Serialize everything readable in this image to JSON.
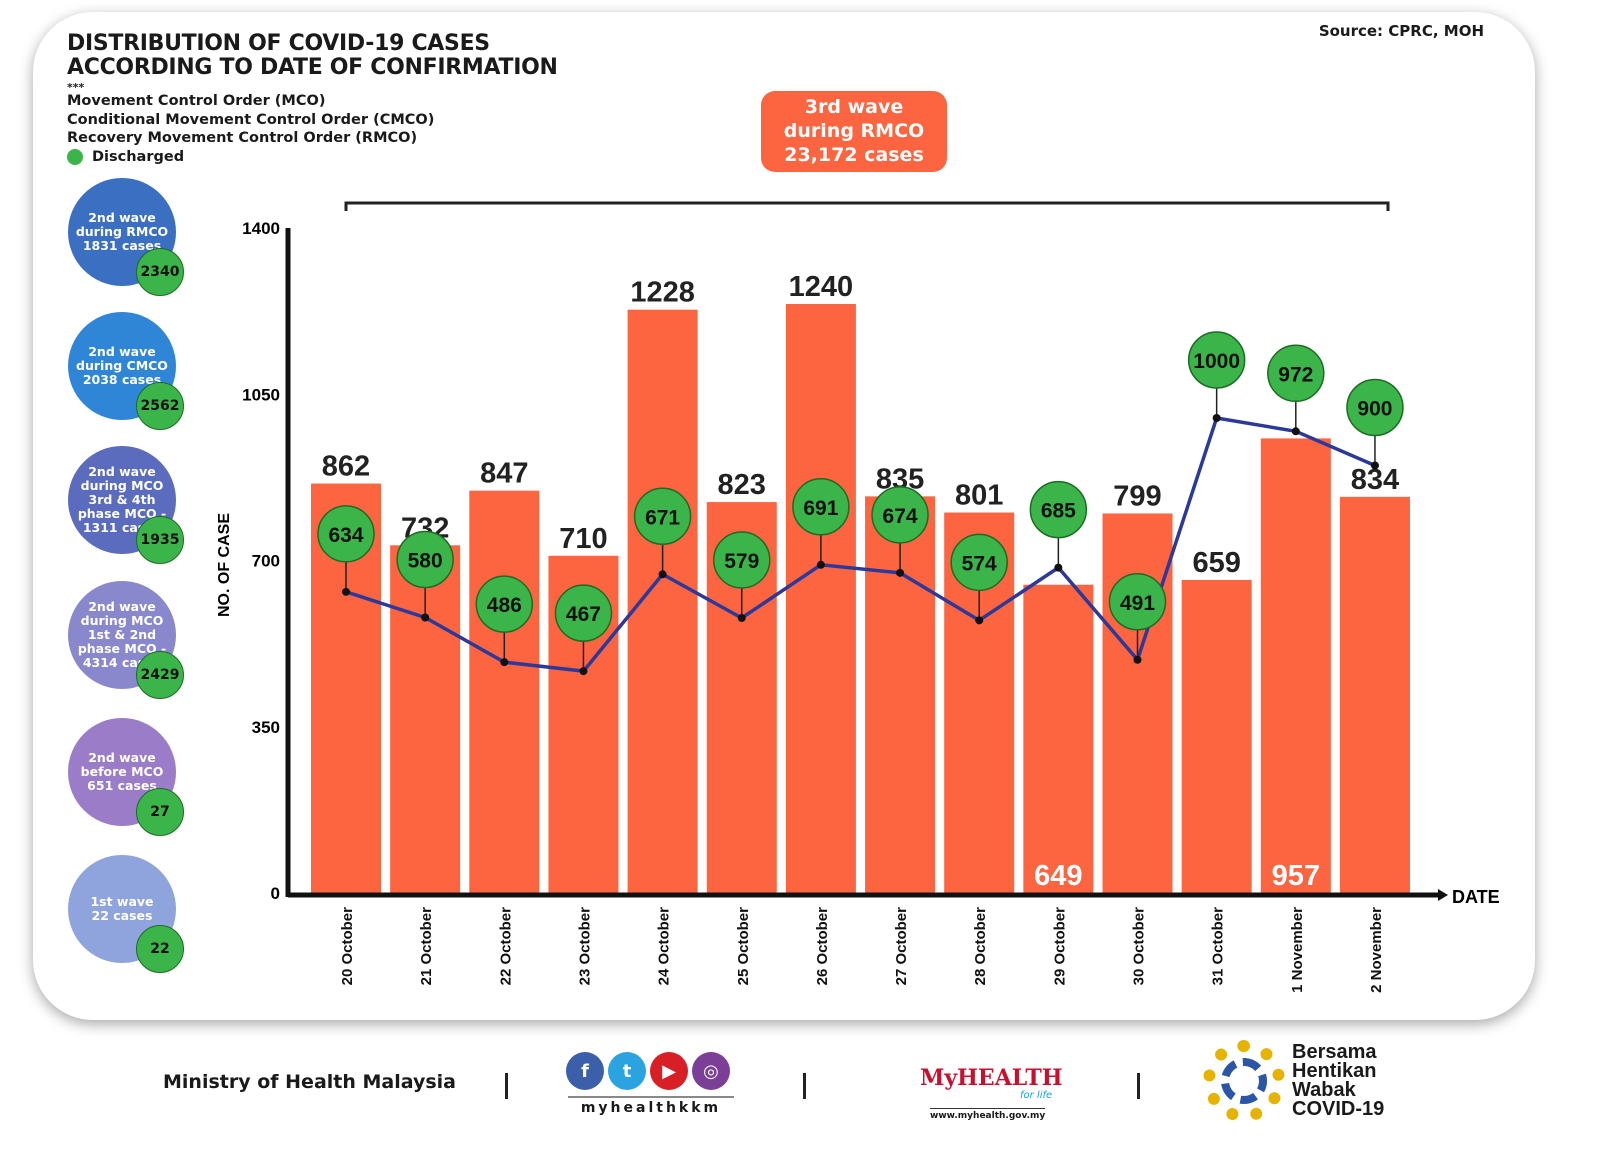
{
  "header": {
    "title_line1": "DISTRIBUTION OF COVID-19 CASES",
    "title_line2": "ACCORDING TO DATE OF CONFIRMATION",
    "stars": "***",
    "notes": [
      "Movement Control Order (MCO)",
      "Conditional Movement Control Order (CMCO)",
      "Recovery Movement Control Order (RMCO)"
    ],
    "legend_discharged": "Discharged",
    "source": "Source: CPRC, MOH"
  },
  "third_wave": {
    "line1": "3rd wave",
    "line2": "during RMCO",
    "line3": "23,172 cases"
  },
  "waves": [
    {
      "label": [
        "2nd wave",
        "during RMCO",
        "1831 cases"
      ],
      "discharged": "2340",
      "color": "#3a6fc2"
    },
    {
      "label": [
        "2nd wave",
        "during CMCO",
        "2038 cases"
      ],
      "discharged": "2562",
      "color": "#2f86d6"
    },
    {
      "label": [
        "2nd wave",
        "during MCO",
        "3rd & 4th",
        "phase MCO -",
        "1311 cases"
      ],
      "discharged": "1935",
      "color": "#5b6cbf"
    },
    {
      "label": [
        "2nd wave",
        "during MCO",
        "1st & 2nd",
        "phase MCO -",
        "4314 cases"
      ],
      "discharged": "2429",
      "color": "#8a88cc"
    },
    {
      "label": [
        "2nd wave",
        "before MCO",
        "651 cases"
      ],
      "discharged": "27",
      "color": "#9a7cc9"
    },
    {
      "label": [
        "1st wave",
        "22 cases"
      ],
      "discharged": "22",
      "color": "#8fa3dc"
    }
  ],
  "chart_data": {
    "type": "bar",
    "xlabel": "DATE",
    "ylabel": "NO. OF CASE",
    "ylim": [
      0,
      1400
    ],
    "yticks": [
      0,
      350,
      700,
      1050,
      1400
    ],
    "categories": [
      "20 October",
      "21 October",
      "22 October",
      "23 October",
      "24 October",
      "25 October",
      "26 October",
      "27 October",
      "28 October",
      "29 October",
      "30 October",
      "31 October",
      "1 November",
      "2 November"
    ],
    "series": [
      {
        "type": "bar",
        "values": [
          862,
          732,
          847,
          710,
          1228,
          823,
          1240,
          835,
          801,
          649,
          799,
          659,
          957,
          834
        ],
        "color": "#fd6440"
      },
      {
        "type": "line",
        "name": "Discharged",
        "values": [
          634,
          580,
          486,
          467,
          671,
          579,
          691,
          674,
          574,
          685,
          491,
          1000,
          972,
          900
        ],
        "color": "#2b3a9a",
        "marker_color": "#3bb54a"
      }
    ]
  },
  "footer": {
    "ministry": "Ministry of Health Malaysia",
    "social_handle": "myhealthkkm",
    "social_icons": [
      "facebook-icon",
      "twitter-icon",
      "youtube-icon",
      "instagram-icon"
    ],
    "myhealth_logo": "MyHEALTH",
    "myhealth_tagline": "for life",
    "myhealth_url": "www.myhealth.gov.my",
    "campaign": [
      "Bersama",
      "Hentikan",
      "Wabak",
      "COVID-19"
    ]
  }
}
